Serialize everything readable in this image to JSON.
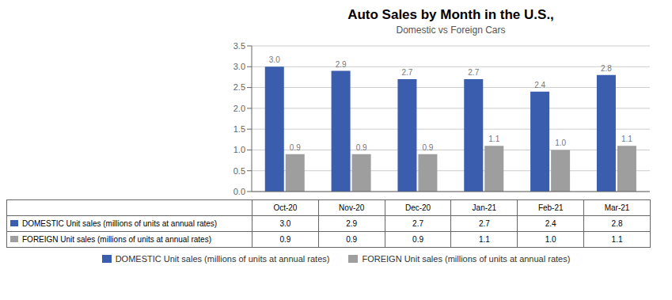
{
  "chart_data": {
    "type": "bar",
    "title": "Auto Sales by Month in the U.S.,",
    "subtitle": "Domestic vs Foreign Cars",
    "categories": [
      "Oct-20",
      "Nov-20",
      "Dec-20",
      "Jan-21",
      "Feb-21",
      "Mar-21"
    ],
    "series": [
      {
        "name": "DOMESTIC Unit sales (millions of units at annual rates)",
        "color": "#3A5DAE",
        "values": [
          3.0,
          2.9,
          2.7,
          2.7,
          2.4,
          2.8
        ],
        "value_labels": [
          "3.0",
          "2.9",
          "2.7",
          "2.7",
          "2.4",
          "2.8"
        ]
      },
      {
        "name": "FOREIGN Unit sales (millions of units at annual rates)",
        "color": "#9E9E9E",
        "values": [
          0.9,
          0.9,
          0.9,
          1.1,
          1.0,
          1.1
        ],
        "value_labels": [
          "0.9",
          "0.9",
          "0.9",
          "1.1",
          "1.0",
          "1.1"
        ]
      }
    ],
    "ylim": [
      0,
      3.5
    ],
    "yticks": [
      {
        "value": 0.0,
        "label": "0.0"
      },
      {
        "value": 0.5,
        "label": "0.5"
      },
      {
        "value": 1.0,
        "label": "1.0"
      },
      {
        "value": 1.5,
        "label": "1.5"
      },
      {
        "value": 2.0,
        "label": "2.0"
      },
      {
        "value": 2.5,
        "label": "2.5"
      },
      {
        "value": 3.0,
        "label": "3.0"
      },
      {
        "value": 3.5,
        "label": "3.5"
      }
    ],
    "grid": true,
    "legend": "bottom",
    "data_labels": true
  }
}
